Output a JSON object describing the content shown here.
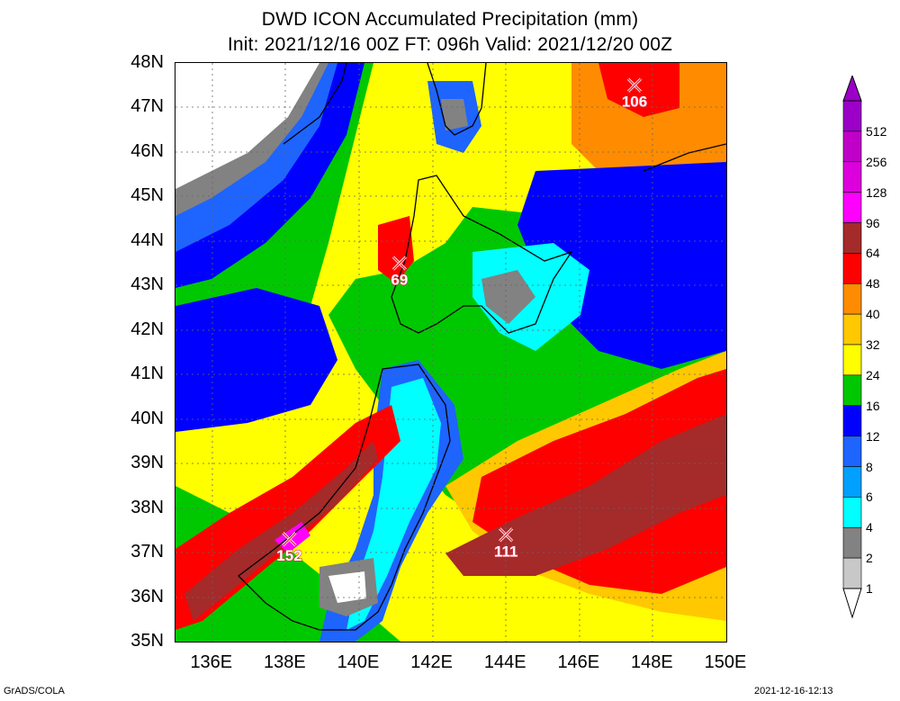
{
  "title_line1": "DWD ICON Accumulated Precipitation (mm)",
  "title_line2": "Init: 2021/12/16 00Z  FT: 096h  Valid: 2021/12/20 00Z",
  "lat_labels": [
    "48N",
    "47N",
    "46N",
    "45N",
    "44N",
    "43N",
    "42N",
    "41N",
    "40N",
    "39N",
    "38N",
    "37N",
    "36N",
    "35N"
  ],
  "lon_labels": [
    "136E",
    "138E",
    "140E",
    "142E",
    "144E",
    "146E",
    "148E",
    "150E"
  ],
  "colorbar": {
    "labels": [
      "512",
      "256",
      "128",
      "96",
      "64",
      "48",
      "40",
      "32",
      "24",
      "16",
      "12",
      "8",
      "6",
      "4",
      "2",
      "1"
    ],
    "colors": [
      "#9c00c8",
      "#c000c8",
      "#dc00dc",
      "#ff00ff",
      "#a52a2a",
      "#ff0000",
      "#ff8c00",
      "#ffc800",
      "#ffff00",
      "#00c800",
      "#0000ff",
      "#1e64ff",
      "#00a0ff",
      "#00ffff",
      "#828282",
      "#c8c8c8"
    ]
  },
  "maxima": [
    {
      "value": "106",
      "lon": 147.5,
      "lat": 47.5
    },
    {
      "value": "69",
      "lon": 141.1,
      "lat": 43.5
    },
    {
      "value": "152",
      "lon": 138.1,
      "lat": 37.3
    },
    {
      "value": "111",
      "lon": 144.0,
      "lat": 37.4
    }
  ],
  "extent": {
    "lon": [
      135,
      150
    ],
    "lat": [
      35,
      48
    ]
  },
  "footer_left": "GrADS/COLA",
  "footer_right": "2021-12-16-12:13"
}
